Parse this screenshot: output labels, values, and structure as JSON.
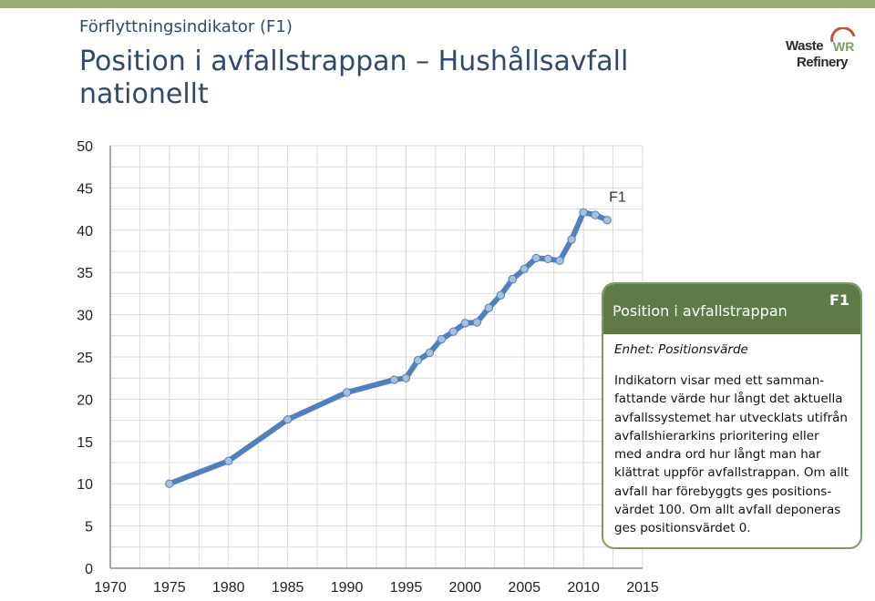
{
  "header": {
    "kicker": "Förflyttningsindikator (F1)",
    "title": "Position i avfallstrappan – Hushållsavfall nationellt"
  },
  "logo": {
    "line1": "Waste",
    "line2": "Refinery",
    "mark": "WR"
  },
  "info_box": {
    "title": "Position i avfallstrappan",
    "code": "F1",
    "unit": "Enhet: Positionsvärde",
    "lines": [
      "Indikatorn visar med ett samman-",
      "fattande värde hur långt det aktuella",
      "avfallssystemet har utvecklats utifrån",
      "avfallshierarkins prioritering eller",
      "med andra ord hur långt man har",
      "klättrat uppför avfallstrappan. Om allt",
      "avfall har förebyggts ges positions-",
      "värdet 100. Om allt avfall deponeras",
      "ges positionsvärdet 0."
    ]
  },
  "colors": {
    "brand_green": "#5e7b47",
    "line_blue": "#4f81bd",
    "marker_blue": "#a5bfdc"
  },
  "chart_data": {
    "type": "line",
    "xlim": [
      1970,
      2015
    ],
    "ylim": [
      0,
      50
    ],
    "x_ticks": [
      "1970",
      "1975",
      "1980",
      "1985",
      "1990",
      "1995",
      "2000",
      "2005",
      "2010",
      "2015"
    ],
    "y_ticks": [
      "0",
      "5",
      "10",
      "15",
      "20",
      "25",
      "30",
      "35",
      "40",
      "45",
      "50"
    ],
    "grid": true,
    "series": [
      {
        "name": "F1",
        "x": [
          1975,
          1980,
          1985,
          1990,
          1994,
          1995,
          1996,
          1997,
          1998,
          1999,
          2000,
          2001,
          2002,
          2003,
          2004,
          2005,
          2006,
          2007,
          2008,
          2009,
          2010,
          2011,
          2012
        ],
        "y": [
          10.0,
          12.7,
          17.6,
          20.8,
          22.3,
          22.5,
          24.6,
          25.5,
          27.1,
          28.0,
          29.0,
          29.1,
          30.8,
          32.3,
          34.2,
          35.4,
          36.7,
          36.6,
          36.4,
          38.9,
          42.1,
          41.8,
          41.2
        ]
      }
    ]
  }
}
